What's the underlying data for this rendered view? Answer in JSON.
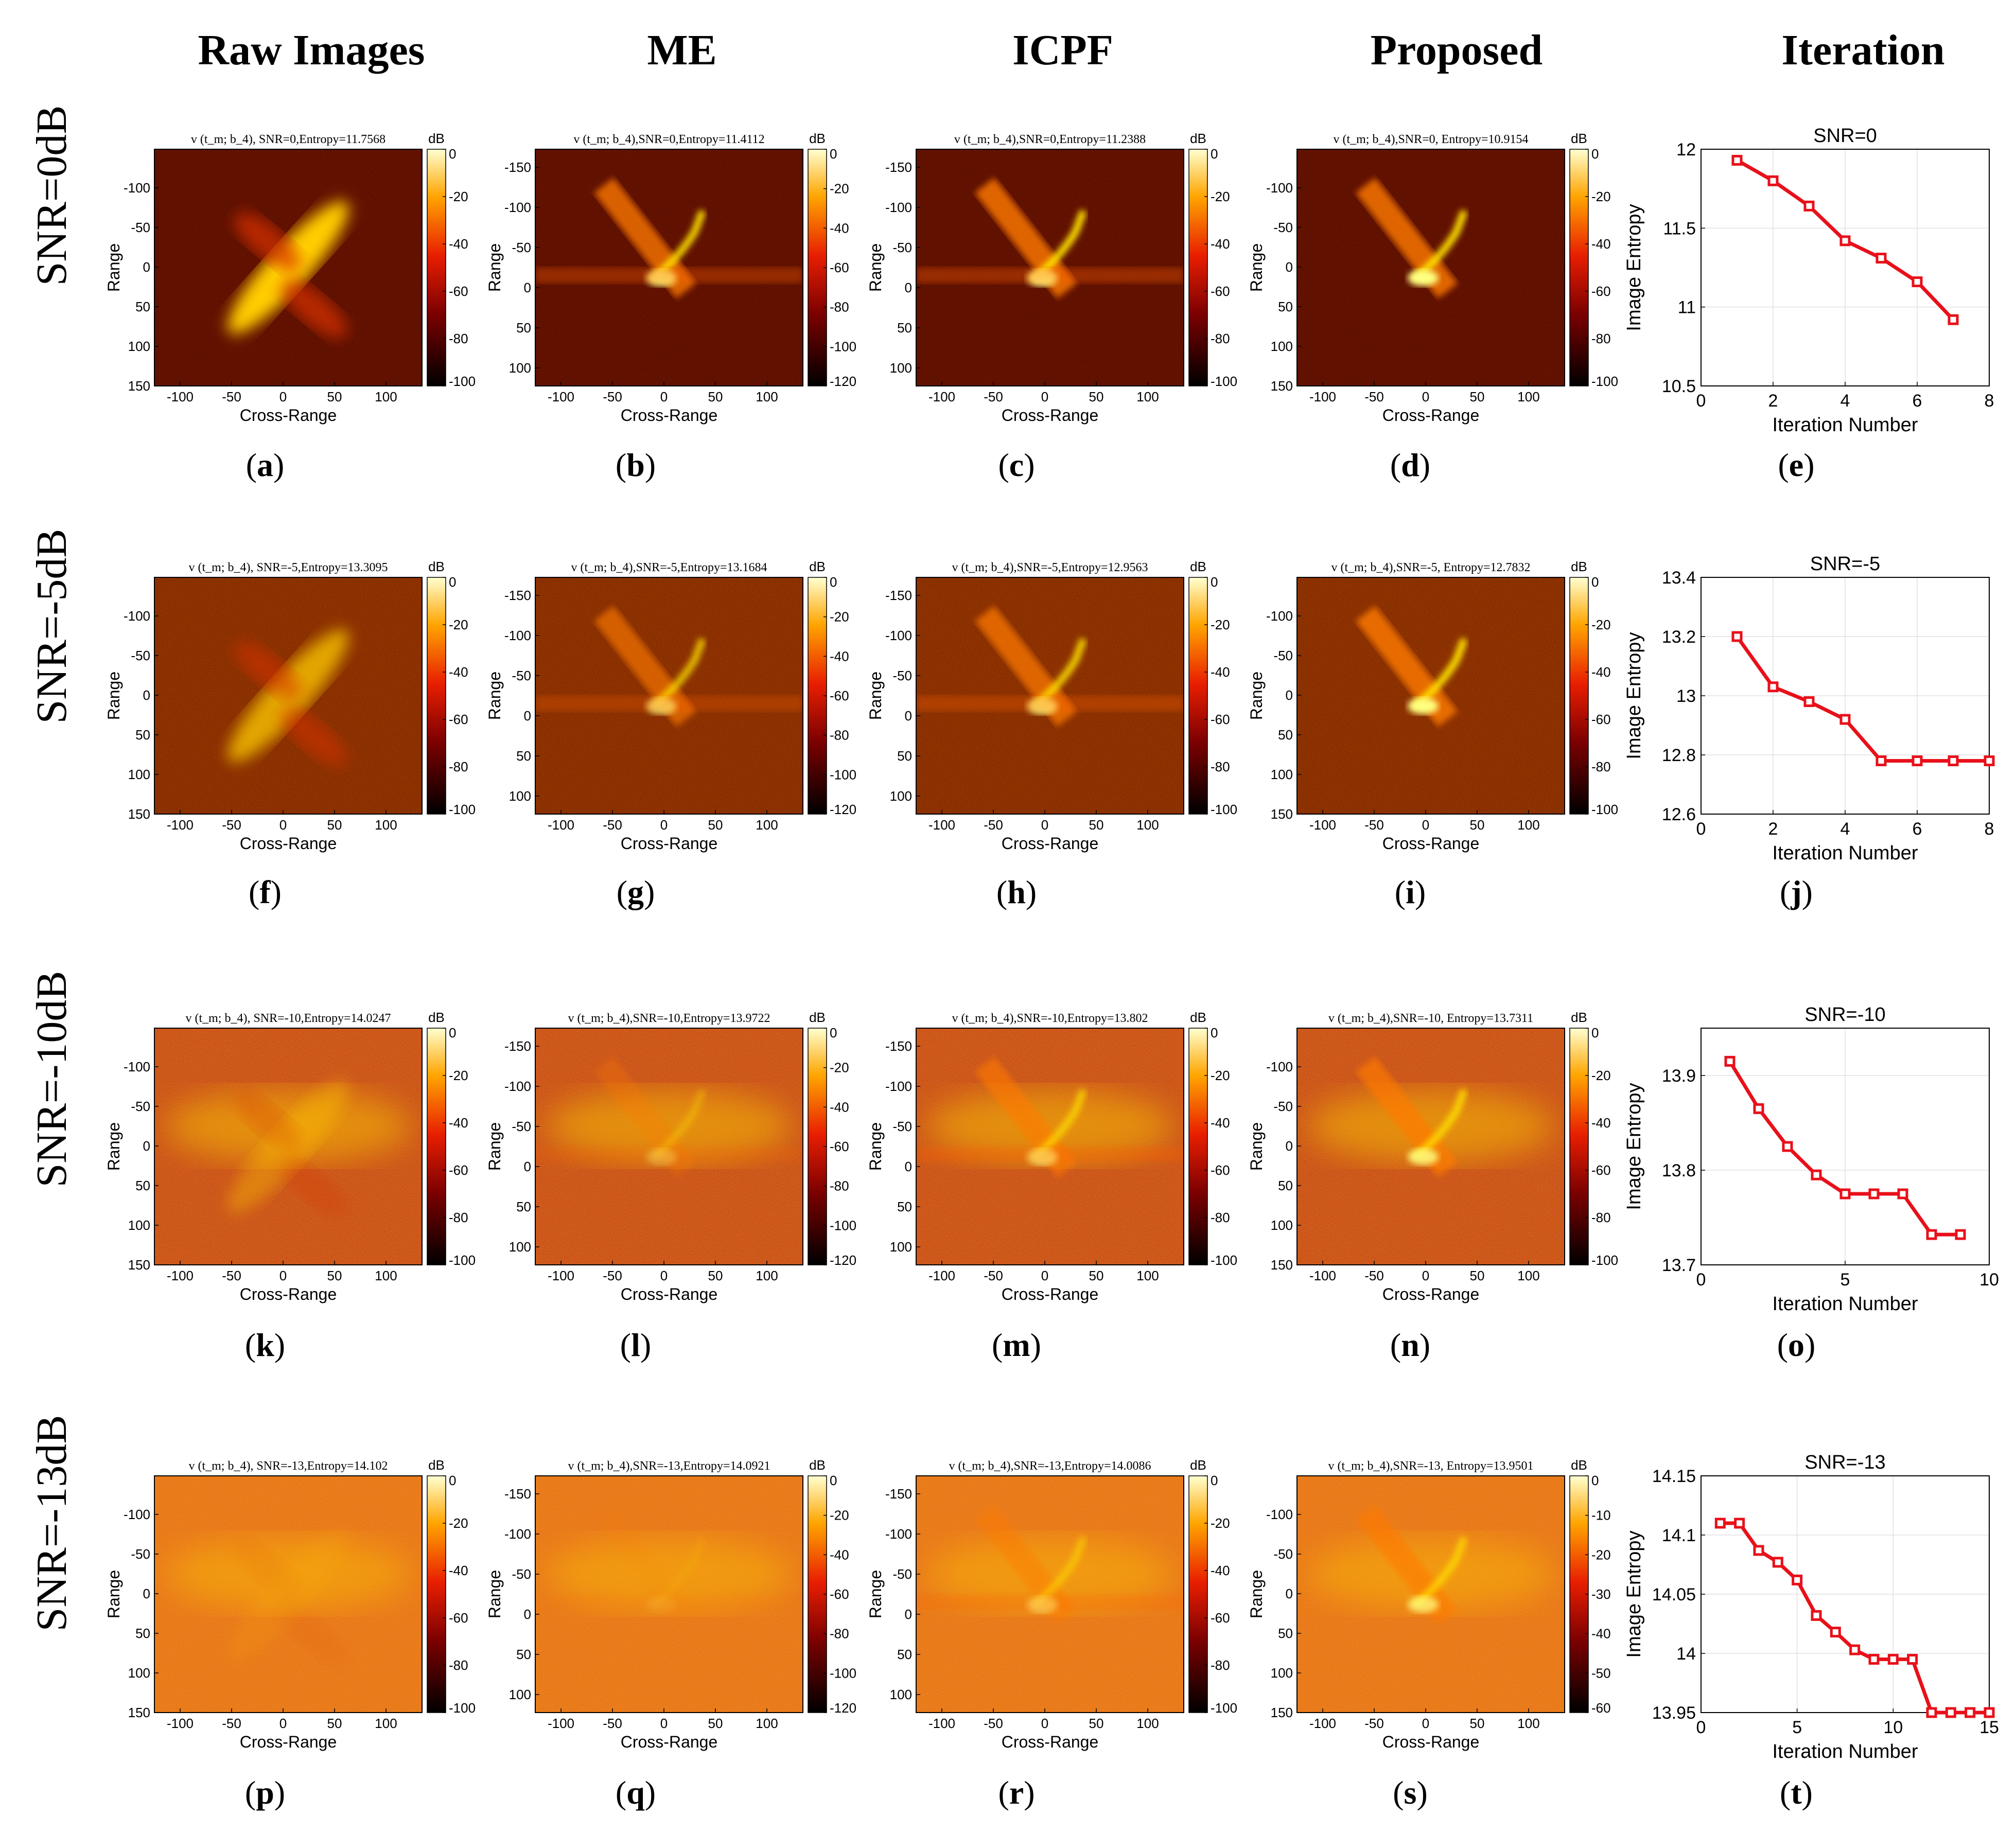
{
  "column_headers": [
    "Raw Images",
    "ME",
    "ICPF",
    "Proposed",
    "Iteration"
  ],
  "row_headers": [
    "SNR=0dB",
    "SNR=-5dB",
    "SNR=-10dB",
    "SNR=-13dB"
  ],
  "subfigure_labels": [
    "a",
    "b",
    "c",
    "d",
    "e",
    "f",
    "g",
    "h",
    "i",
    "j",
    "k",
    "l",
    "m",
    "n",
    "o",
    "p",
    "q",
    "r",
    "s",
    "t"
  ],
  "image_axis_labels": {
    "xlabel": "Cross-Range",
    "ylabel": "Range",
    "colorbar_unit": "dB"
  },
  "image_titles": [
    [
      "v (t_m; b_4), SNR=0,Entropy=11.7568",
      "v (t_m; b_4),SNR=0,Entropy=11.4112",
      "v (t_m; b_4),SNR=0,Entropy=11.2388",
      "v (t_m; b_4),SNR=0, Entropy=10.9154"
    ],
    [
      "v (t_m; b_4), SNR=-5,Entropy=13.3095",
      "v (t_m; b_4),SNR=-5,Entropy=13.1684",
      "v (t_m; b_4),SNR=-5,Entropy=12.9563",
      "v (t_m; b_4),SNR=-5, Entropy=12.7832"
    ],
    [
      "v (t_m; b_4), SNR=-10,Entropy=14.0247",
      "v (t_m; b_4),SNR=-10,Entropy=13.9722",
      "v (t_m; b_4),SNR=-10,Entropy=13.802",
      "v (t_m; b_4),SNR=-10, Entropy=13.7311"
    ],
    [
      "v (t_m; b_4), SNR=-13,Entropy=14.102",
      "v (t_m; b_4),SNR=-13,Entropy=14.0921",
      "v (t_m; b_4),SNR=-13,Entropy=14.0086",
      "v (t_m; b_4),SNR=-13, Entropy=13.9501"
    ]
  ],
  "image_xticks": [
    "-100",
    "-50",
    "0",
    "50",
    "100"
  ],
  "image_yticks_tall": [
    "-150",
    "-100",
    "-50",
    "0",
    "50",
    "100"
  ],
  "image_yticks_short": [
    "-100",
    "-50",
    "0",
    "50",
    "100",
    "150"
  ],
  "colorbar_ticks": {
    "to_minus_100": [
      "0",
      "-20",
      "-40",
      "-60",
      "-80",
      "-100"
    ],
    "to_minus_120": [
      "0",
      "-20",
      "-40",
      "-60",
      "-80",
      "-100",
      "-120"
    ],
    "to_minus_60": [
      "0",
      "-10",
      "-20",
      "-30",
      "-40",
      "-50",
      "-60"
    ]
  },
  "colors": {
    "line": "#e8101a",
    "heat_dark": "#000000",
    "heat_mid": "#e81e00",
    "heat_hot": "#ffee00"
  },
  "chart_data": [
    {
      "type": "line",
      "title": "SNR=0",
      "xlabel": "Iteration Number",
      "ylabel": "Image Entropy",
      "x": [
        1,
        2,
        3,
        4,
        5,
        6,
        7
      ],
      "values": [
        11.93,
        11.8,
        11.64,
        11.42,
        11.31,
        11.16,
        10.92
      ],
      "xlim": [
        0,
        8
      ],
      "ylim": [
        10.5,
        12
      ],
      "xticks": [
        0,
        2,
        4,
        6,
        8
      ],
      "yticks": [
        10.5,
        11,
        11.5,
        12
      ],
      "xtick_labels": [
        "0",
        "2",
        "4",
        "6",
        "8"
      ],
      "ytick_labels": [
        "10.5",
        "11",
        "11.5",
        "12"
      ],
      "grid": true
    },
    {
      "type": "line",
      "title": "SNR=-5",
      "xlabel": "Iteration Number",
      "ylabel": "Image Entropy",
      "x": [
        1,
        2,
        3,
        4,
        5,
        6,
        7,
        8
      ],
      "values": [
        13.2,
        13.03,
        12.98,
        12.92,
        12.78,
        12.78,
        12.78,
        12.78
      ],
      "xlim": [
        0,
        8
      ],
      "ylim": [
        12.6,
        13.4
      ],
      "xticks": [
        0,
        2,
        4,
        6,
        8
      ],
      "yticks": [
        12.6,
        12.8,
        13,
        13.2,
        13.4
      ],
      "xtick_labels": [
        "0",
        "2",
        "4",
        "6",
        "8"
      ],
      "ytick_labels": [
        "12.6",
        "12.8",
        "13",
        "13.2",
        "13.4"
      ],
      "grid": true
    },
    {
      "type": "line",
      "title": "SNR=-10",
      "xlabel": "Iteration Number",
      "ylabel": "Image Entropy",
      "x": [
        1,
        2,
        3,
        4,
        5,
        6,
        7,
        8,
        9
      ],
      "values": [
        13.915,
        13.865,
        13.825,
        13.795,
        13.775,
        13.775,
        13.775,
        13.732,
        13.732
      ],
      "xlim": [
        0,
        10
      ],
      "ylim": [
        13.7,
        13.95
      ],
      "xticks": [
        0,
        5,
        10
      ],
      "yticks": [
        13.7,
        13.8,
        13.9
      ],
      "xtick_labels": [
        "0",
        "5",
        "10"
      ],
      "ytick_labels": [
        "13.7",
        "13.8",
        "13.9"
      ],
      "grid": true
    },
    {
      "type": "line",
      "title": "SNR=-13",
      "xlabel": "Iteration Number",
      "ylabel": "Image Entropy",
      "x": [
        1,
        2,
        3,
        4,
        5,
        6,
        7,
        8,
        9,
        10,
        11,
        12,
        13,
        14,
        15
      ],
      "values": [
        14.11,
        14.11,
        14.087,
        14.077,
        14.062,
        14.032,
        14.018,
        14.003,
        13.995,
        13.995,
        13.995,
        13.95,
        13.95,
        13.95,
        13.95
      ],
      "xlim": [
        0,
        15
      ],
      "ylim": [
        13.95,
        14.15
      ],
      "xticks": [
        0,
        5,
        10,
        15
      ],
      "yticks": [
        13.95,
        14,
        14.05,
        14.1,
        14.15
      ],
      "xtick_labels": [
        "0",
        "5",
        "10",
        "15"
      ],
      "ytick_labels": [
        "13.95",
        "14",
        "14.05",
        "14.1",
        "14.15"
      ],
      "grid": true
    }
  ]
}
